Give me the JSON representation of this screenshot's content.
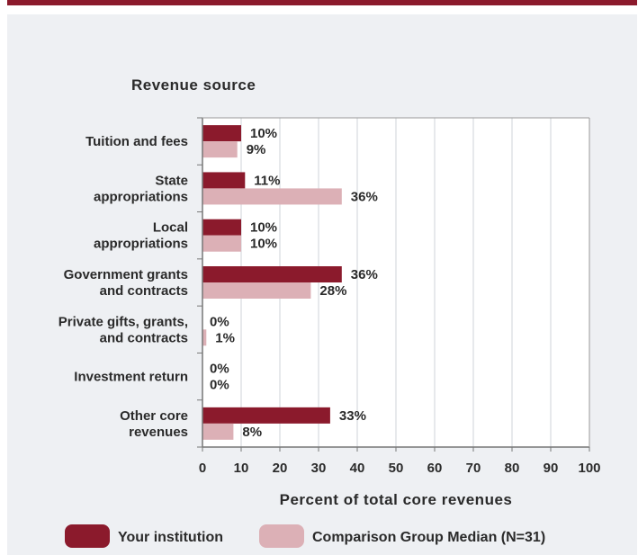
{
  "chart_data": {
    "type": "bar",
    "orientation": "horizontal",
    "title": "Revenue source",
    "xlabel": "Percent of total core revenues",
    "xlim": [
      0,
      100
    ],
    "xticks": [
      0,
      10,
      20,
      30,
      40,
      50,
      60,
      70,
      80,
      90,
      100
    ],
    "grid": true,
    "legend_position": "bottom",
    "categories": [
      [
        "Tuition and fees"
      ],
      [
        "State",
        "appropriations"
      ],
      [
        "Local",
        "appropriations"
      ],
      [
        "Government grants",
        "and contracts"
      ],
      [
        "Private gifts, grants,",
        "and contracts"
      ],
      [
        "Investment return"
      ],
      [
        "Other core",
        "revenues"
      ]
    ],
    "series": [
      {
        "name": "Your institution",
        "color": "#8b1a2c",
        "values": [
          10,
          11,
          10,
          36,
          0,
          0,
          33
        ]
      },
      {
        "name": "Comparison Group Median (N=31)",
        "color": "#dcb0b6",
        "values": [
          9,
          36,
          10,
          28,
          1,
          0,
          8
        ]
      }
    ]
  }
}
